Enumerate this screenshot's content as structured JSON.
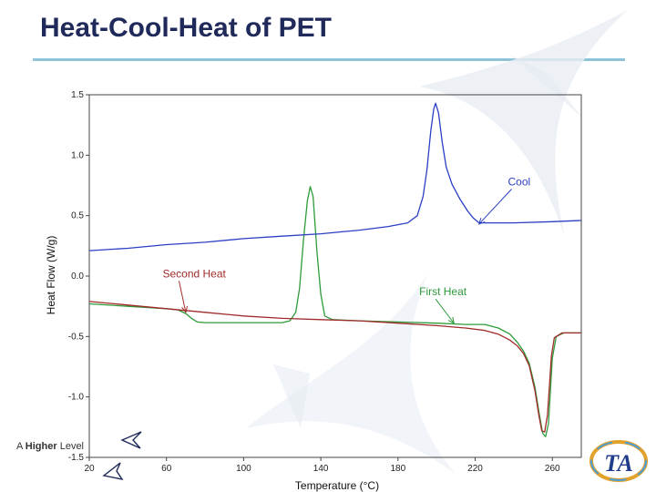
{
  "slide": {
    "title": "Heat-Cool-Heat of PET",
    "footer_prefix": "A",
    "footer_bold": "Higher",
    "footer_suffix": "Level",
    "logo_text": "TA"
  },
  "colors": {
    "first_heat": "#2e9b3a",
    "second_heat": "#a12a2a",
    "cool": "#2a3fc4",
    "title": "#1f2a5a",
    "rule": "#8fc4d8"
  },
  "chart_data": {
    "type": "line",
    "title": "",
    "xlabel": "Temperature (°C)",
    "ylabel": "Heat Flow (W/g)",
    "xlim": [
      20,
      275
    ],
    "ylim": [
      -1.5,
      1.5
    ],
    "xticks": [
      20,
      60,
      100,
      140,
      180,
      220,
      260
    ],
    "xtick_labels": [
      "20",
      "60",
      "100",
      "140",
      "180",
      "220",
      "260"
    ],
    "yticks": [
      -1.5,
      -1.0,
      -0.5,
      0.0,
      0.5,
      1.0,
      1.5
    ],
    "ytick_labels": [
      "-1.5",
      "-1.0",
      "-0.5",
      "0.0",
      "0.5",
      "1.0",
      "1.5"
    ],
    "series": [
      {
        "name": "First Heat",
        "color": "#2e9b3a",
        "points": [
          [
            20,
            -0.23
          ],
          [
            40,
            -0.25
          ],
          [
            60,
            -0.27
          ],
          [
            66,
            -0.28
          ],
          [
            70,
            -0.31
          ],
          [
            73,
            -0.35
          ],
          [
            76,
            -0.38
          ],
          [
            80,
            -0.385
          ],
          [
            100,
            -0.385
          ],
          [
            120,
            -0.385
          ],
          [
            124,
            -0.37
          ],
          [
            127,
            -0.3
          ],
          [
            129,
            -0.1
          ],
          [
            131,
            0.3
          ],
          [
            133,
            0.62
          ],
          [
            134.5,
            0.74
          ],
          [
            136,
            0.66
          ],
          [
            138,
            0.2
          ],
          [
            140,
            -0.15
          ],
          [
            142,
            -0.33
          ],
          [
            146,
            -0.36
          ],
          [
            160,
            -0.37
          ],
          [
            180,
            -0.38
          ],
          [
            200,
            -0.39
          ],
          [
            215,
            -0.4
          ],
          [
            225,
            -0.4
          ],
          [
            232,
            -0.43
          ],
          [
            238,
            -0.48
          ],
          [
            242,
            -0.55
          ],
          [
            245,
            -0.62
          ],
          [
            248,
            -0.72
          ],
          [
            251,
            -0.92
          ],
          [
            253,
            -1.12
          ],
          [
            255,
            -1.3
          ],
          [
            256.5,
            -1.33
          ],
          [
            258,
            -1.22
          ],
          [
            259,
            -0.95
          ],
          [
            260,
            -0.68
          ],
          [
            262,
            -0.5
          ],
          [
            266,
            -0.47
          ],
          [
            275,
            -0.47
          ]
        ]
      },
      {
        "name": "Second Heat",
        "color": "#a12a2a",
        "points": [
          [
            20,
            -0.21
          ],
          [
            40,
            -0.24
          ],
          [
            60,
            -0.27
          ],
          [
            80,
            -0.3
          ],
          [
            100,
            -0.33
          ],
          [
            120,
            -0.35
          ],
          [
            140,
            -0.36
          ],
          [
            160,
            -0.37
          ],
          [
            180,
            -0.39
          ],
          [
            200,
            -0.41
          ],
          [
            215,
            -0.43
          ],
          [
            225,
            -0.45
          ],
          [
            232,
            -0.48
          ],
          [
            238,
            -0.53
          ],
          [
            242,
            -0.58
          ],
          [
            245,
            -0.64
          ],
          [
            248,
            -0.74
          ],
          [
            251,
            -0.95
          ],
          [
            253,
            -1.15
          ],
          [
            254.5,
            -1.28
          ],
          [
            256,
            -1.29
          ],
          [
            257.5,
            -1.15
          ],
          [
            258.5,
            -0.9
          ],
          [
            259.5,
            -0.66
          ],
          [
            261,
            -0.51
          ],
          [
            265,
            -0.47
          ],
          [
            275,
            -0.47
          ]
        ]
      },
      {
        "name": "Cool",
        "color": "#2a3fc4",
        "points": [
          [
            20,
            0.21
          ],
          [
            40,
            0.23
          ],
          [
            60,
            0.26
          ],
          [
            80,
            0.28
          ],
          [
            100,
            0.31
          ],
          [
            120,
            0.33
          ],
          [
            140,
            0.35
          ],
          [
            160,
            0.38
          ],
          [
            175,
            0.41
          ],
          [
            185,
            0.44
          ],
          [
            190,
            0.5
          ],
          [
            193,
            0.66
          ],
          [
            195,
            0.88
          ],
          [
            197,
            1.2
          ],
          [
            198.5,
            1.38
          ],
          [
            199.5,
            1.43
          ],
          [
            201,
            1.35
          ],
          [
            203,
            1.1
          ],
          [
            205,
            0.9
          ],
          [
            208,
            0.76
          ],
          [
            212,
            0.64
          ],
          [
            216,
            0.54
          ],
          [
            219,
            0.48
          ],
          [
            222,
            0.44
          ],
          [
            225,
            0.44
          ],
          [
            240,
            0.44
          ],
          [
            260,
            0.45
          ],
          [
            275,
            0.46
          ]
        ]
      }
    ],
    "annotations": [
      {
        "label": "Cool",
        "color": "#2a3fc4",
        "target": [
          222,
          0.43
        ],
        "label_at": [
          237,
          0.75
        ]
      },
      {
        "label": "Second Heat",
        "color": "#a12a2a",
        "target": [
          70,
          -0.3
        ],
        "label_at": [
          58,
          -0.01
        ]
      },
      {
        "label": "First Heat",
        "color": "#2e9b3a",
        "target": [
          209,
          -0.39
        ],
        "label_at": [
          191,
          -0.16
        ]
      }
    ]
  }
}
